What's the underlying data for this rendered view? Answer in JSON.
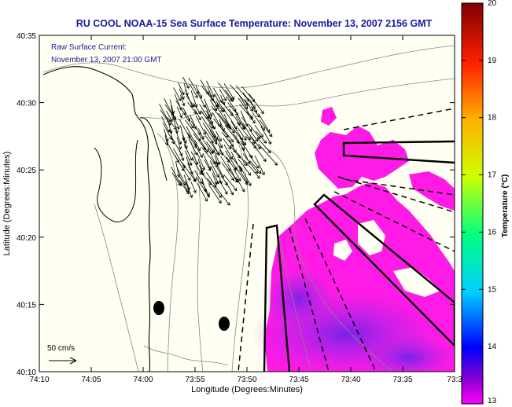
{
  "title": "RU COOL  NOAA-15  Sea Surface Temperature:  November 13, 2007 2156 GMT",
  "legend": {
    "line1": "Raw Surface Current:",
    "line2": "November 13, 2007 21:00 GMT"
  },
  "scale_label": "50 cm/s",
  "axes": {
    "xlabel": "Longitude (Degrees:Minutes)",
    "ylabel": "Latitude (Degrees:Minutes)",
    "x_ticks": [
      "74:10",
      "74:05",
      "74:00",
      "73:55",
      "73:50",
      "73:45",
      "73:40",
      "73:35",
      "73:3"
    ],
    "y_ticks": [
      "40:35",
      "40:30",
      "40:25",
      "40:20",
      "40:15",
      "40:10"
    ]
  },
  "colorbar": {
    "label": "Temperature (°C)",
    "ticks": [
      "20",
      "19",
      "18",
      "17",
      "16",
      "15",
      "14",
      "13"
    ],
    "min": 13,
    "max": 20
  },
  "colors": {
    "title": "#1a1aa0",
    "land": "#fffff2",
    "sst_warm": "#ff1ae6",
    "sst_cool": "#8a33e0"
  }
}
